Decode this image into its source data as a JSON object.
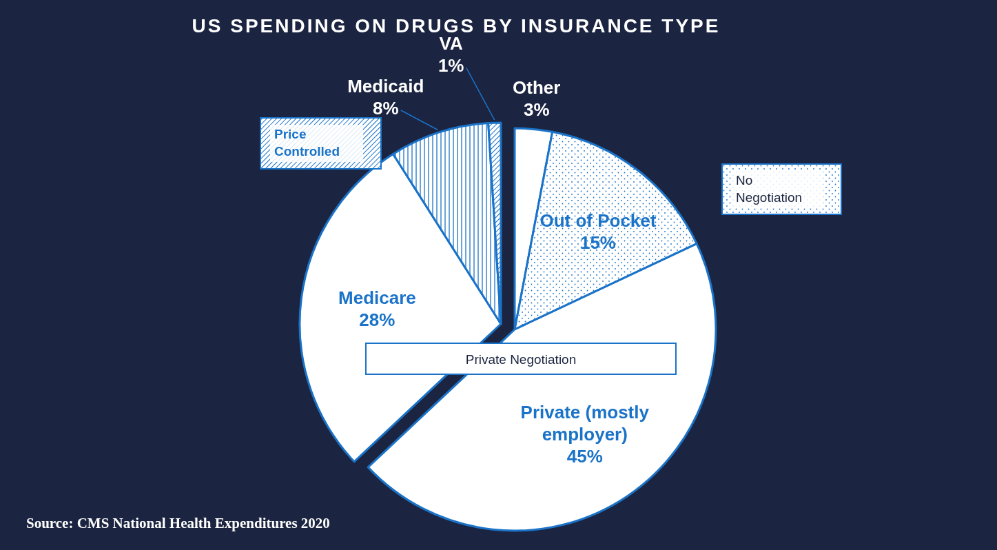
{
  "chart_data": {
    "type": "pie",
    "title": "US SPENDING ON DRUGS BY INSURANCE TYPE",
    "categories": [
      "Other",
      "Out of Pocket",
      "Private (mostly employer)",
      "Medicare",
      "Medicaid",
      "VA"
    ],
    "values": [
      3,
      15,
      45,
      28,
      8,
      1
    ],
    "value_labels": [
      "3%",
      "15%",
      "45%",
      "28%",
      "8%",
      "1%"
    ],
    "colors": [
      "#ffffff",
      "#1a73c8",
      "#ffffff",
      "#ffffff",
      "#1a73c8",
      "#1a73c8"
    ],
    "annotations": [
      "Price Controlled",
      "No Negotiation",
      "Private Negotiation",
      "Source: CMS National Health Expenditures 2020"
    ]
  }
}
